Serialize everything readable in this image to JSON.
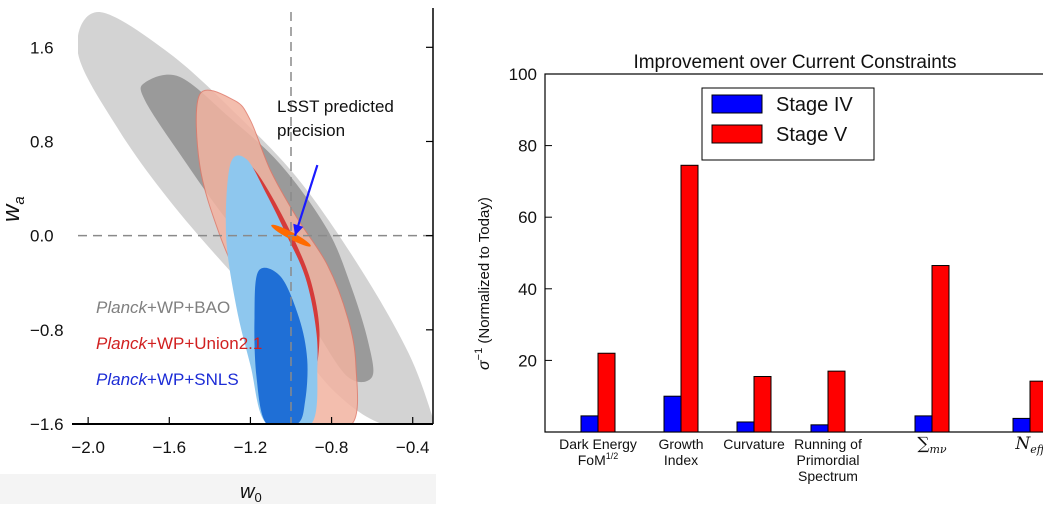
{
  "chart_data": [
    {
      "type": "area",
      "title": "",
      "xlabel": "w",
      "xlabel_sub": "0",
      "ylabel": "w",
      "ylabel_sub": "a",
      "xlim": [
        -2.05,
        -0.3
      ],
      "ylim": [
        -1.6,
        1.9
      ],
      "xticks": [
        -2.0,
        -1.6,
        -1.2,
        -0.8,
        -0.4
      ],
      "xtick_labels": [
        "−2.0",
        "−1.6",
        "−1.2",
        "−0.8",
        "−0.4"
      ],
      "yticks": [
        1.6,
        0.8,
        0.0,
        -0.8,
        -1.6
      ],
      "ytick_labels": [
        "1.6",
        "0.8",
        "0.0",
        "−0.8",
        "−1.6"
      ],
      "reference_lines": {
        "x": -1.0,
        "y": 0.0
      },
      "series": [
        {
          "name": "Planck+WP+BAO",
          "name_prefix": "Planck",
          "name_suffix": "+WP+BAO",
          "color": "#808080",
          "inner_color": "#9a9a9a",
          "outer_color": "#d3d3d3",
          "outer": [
            [
              -2.05,
              1.55
            ],
            [
              -1.95,
              1.9
            ],
            [
              -1.6,
              1.55
            ],
            [
              -1.25,
              1.0
            ],
            [
              -0.95,
              0.45
            ],
            [
              -0.65,
              -0.3
            ],
            [
              -0.42,
              -1.0
            ],
            [
              -0.3,
              -1.55
            ],
            [
              -0.3,
              -1.6
            ],
            [
              -0.55,
              -1.6
            ],
            [
              -0.8,
              -1.3
            ],
            [
              -1.05,
              -0.75
            ],
            [
              -1.3,
              -0.3
            ],
            [
              -1.6,
              0.3
            ],
            [
              -1.85,
              0.9
            ]
          ],
          "inner": [
            [
              -1.72,
              1.3
            ],
            [
              -1.55,
              1.35
            ],
            [
              -1.3,
              1.0
            ],
            [
              -1.05,
              0.6
            ],
            [
              -0.82,
              0.05
            ],
            [
              -0.7,
              -0.45
            ],
            [
              -0.62,
              -0.9
            ],
            [
              -0.6,
              -1.2
            ],
            [
              -0.72,
              -1.2
            ],
            [
              -0.88,
              -0.8
            ],
            [
              -1.05,
              -0.35
            ],
            [
              -1.3,
              0.1
            ],
            [
              -1.55,
              0.7
            ],
            [
              -1.72,
              1.15
            ]
          ]
        },
        {
          "name": "Planck+WP+Union2.1",
          "name_prefix": "Planck",
          "name_suffix": "+WP+Union2.1",
          "color": "#d12020",
          "inner_color": "#d32f2f",
          "outer_color": "#f2b3a1",
          "outer": [
            [
              -1.45,
              1.2
            ],
            [
              -1.28,
              1.15
            ],
            [
              -1.2,
              0.98
            ],
            [
              -1.1,
              0.55
            ],
            [
              -0.97,
              0.15
            ],
            [
              -0.82,
              -0.25
            ],
            [
              -0.72,
              -0.7
            ],
            [
              -0.68,
              -1.1
            ],
            [
              -0.7,
              -1.6
            ],
            [
              -0.95,
              -1.6
            ],
            [
              -1.05,
              -1.2
            ],
            [
              -1.2,
              -0.6
            ],
            [
              -1.35,
              0.0
            ],
            [
              -1.45,
              0.6
            ]
          ],
          "inner": [
            [
              -1.28,
              0.65
            ],
            [
              -1.2,
              0.6
            ],
            [
              -1.1,
              0.35
            ],
            [
              -0.98,
              -0.05
            ],
            [
              -0.9,
              -0.4
            ],
            [
              -0.86,
              -0.8
            ],
            [
              -0.88,
              -1.2
            ],
            [
              -0.92,
              -1.45
            ],
            [
              -1.0,
              -1.45
            ],
            [
              -1.08,
              -1.0
            ],
            [
              -1.18,
              -0.5
            ],
            [
              -1.27,
              0.0
            ],
            [
              -1.3,
              0.4
            ]
          ]
        },
        {
          "name": "Planck+WP+SNLS",
          "name_prefix": "Planck",
          "name_suffix": "+WP+SNLS",
          "color": "#1c2cd6",
          "inner_color": "#1f6fd6",
          "outer_color": "#8ec7ee",
          "outer": [
            [
              -1.3,
              0.6
            ],
            [
              -1.22,
              0.65
            ],
            [
              -1.12,
              0.35
            ],
            [
              -1.02,
              0.0
            ],
            [
              -0.93,
              -0.35
            ],
            [
              -0.88,
              -0.75
            ],
            [
              -0.87,
              -1.1
            ],
            [
              -0.9,
              -1.6
            ],
            [
              -1.12,
              -1.6
            ],
            [
              -1.2,
              -1.1
            ],
            [
              -1.27,
              -0.6
            ],
            [
              -1.32,
              0.0
            ]
          ],
          "inner": [
            [
              -1.16,
              -0.3
            ],
            [
              -1.05,
              -0.35
            ],
            [
              -0.96,
              -0.7
            ],
            [
              -0.92,
              -1.05
            ],
            [
              -0.93,
              -1.4
            ],
            [
              -0.97,
              -1.6
            ],
            [
              -1.12,
              -1.6
            ],
            [
              -1.17,
              -1.2
            ],
            [
              -1.18,
              -0.7
            ]
          ]
        }
      ],
      "lsst_ellipse": {
        "center": [
          -1.0,
          0.0
        ],
        "rx": 0.11,
        "ry": 0.03,
        "angle_deg": -28,
        "color": "#ff6a00"
      },
      "annotation": {
        "text_line1": "LSST predicted",
        "text_line2": "precision",
        "color": "#1a1aff",
        "from": [
          -0.87,
          0.6
        ],
        "to": [
          -1.0,
          0.0
        ]
      }
    },
    {
      "type": "bar",
      "title": "Improvement over Current Constraints",
      "xlabel": "",
      "ylabel": "σ⁻¹ (Normalized to Today)",
      "ylabel_sigma": "σ",
      "ylabel_exp": "−1",
      "ylabel_rest": " (Normalized to Today)",
      "ylim": [
        0,
        100
      ],
      "yticks": [
        20,
        40,
        60,
        80,
        100
      ],
      "categories": [
        "Dark Energy FoM^1/2",
        "Growth Index",
        "Curvature",
        "Running of Primordial Spectrum",
        "∑mν",
        "Neff"
      ],
      "category_lines": [
        [
          {
            "t": "Dark Energy"
          },
          {
            "t": "FoM",
            "sup": "1/2"
          }
        ],
        [
          {
            "t": "Growth"
          },
          {
            "t": "Index"
          }
        ],
        [
          {
            "t": "Curvature"
          }
        ],
        [
          {
            "t": "Running of"
          },
          {
            "t": "Primordial"
          },
          {
            "t": "Spectrum"
          }
        ],
        [
          {
            "t": "∑",
            "sub": "mν",
            "math": true
          }
        ],
        [
          {
            "t": "N",
            "sub": "eff",
            "math": true
          }
        ]
      ],
      "legend_position": "top-center",
      "series": [
        {
          "name": "Stage IV",
          "color": "#0000ff",
          "values": [
            4.5,
            10.0,
            2.8,
            2.0,
            4.5,
            3.8
          ]
        },
        {
          "name": "Stage V",
          "color": "#ff0000",
          "values": [
            22.0,
            74.5,
            15.5,
            17.0,
            46.5,
            14.2
          ]
        }
      ]
    }
  ]
}
